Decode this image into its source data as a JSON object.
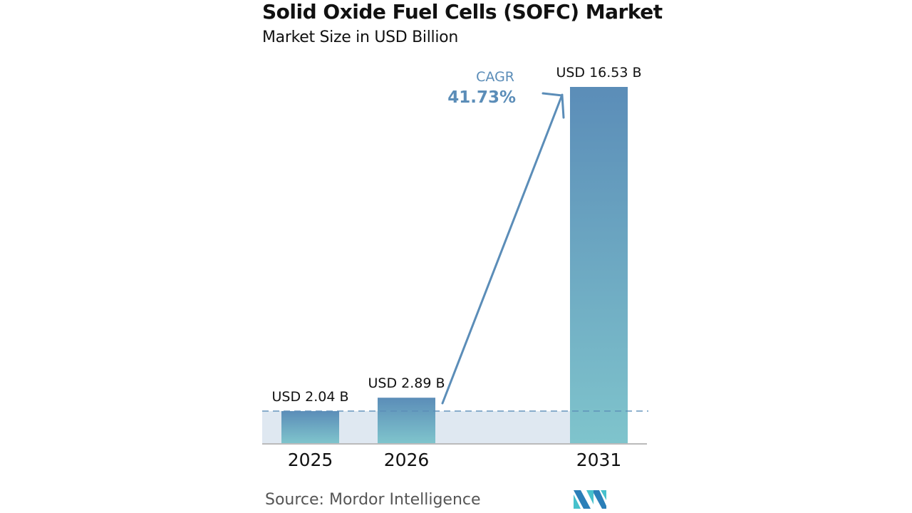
{
  "chart_data": {
    "type": "bar",
    "title": "Solid Oxide Fuel Cells (SOFC) Market",
    "subtitle": "Market Size in USD Billion",
    "xlabel": "",
    "ylabel": "",
    "categories": [
      "2025",
      "2026",
      "2031"
    ],
    "values": [
      2.04,
      2.89,
      16.53
    ],
    "value_labels": [
      "USD 2.04 B",
      "USD 2.89 B",
      "USD 16.53 B"
    ],
    "ylim": [
      0,
      16.53
    ],
    "grid": false,
    "legend": "none",
    "annotations": {
      "cagr_label": "CAGR",
      "cagr_value": "41.73%"
    },
    "colors": {
      "bar_top": "#5b8db8",
      "bar_bottom": "#7fc4cc",
      "band": "#dfe8f1",
      "arrow": "#5b8db8",
      "cagr_text": "#5b8db8",
      "dashed_line": "#5b8db8",
      "axis": "#bbbbbb"
    }
  },
  "footer": {
    "source": "Source:  Mordor Intelligence",
    "logo": "mordor-intelligence-logo"
  }
}
